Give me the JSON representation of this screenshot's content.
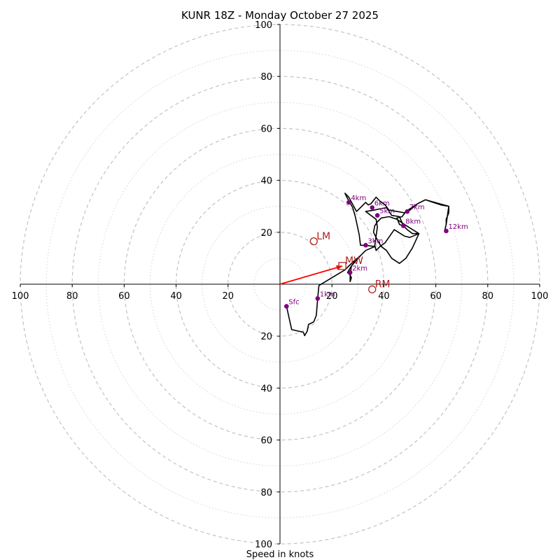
{
  "chart_data": {
    "type": "hodograph",
    "title": "KUNR 18Z - Monday October 27 2025",
    "xlabel": "Speed in knots",
    "range": [
      -100,
      100
    ],
    "rings_major": [
      20,
      40,
      60,
      80,
      100
    ],
    "rings_minor": [
      10,
      30,
      50,
      70,
      90
    ],
    "x_ticks": [
      {
        "value": -100,
        "label": "100"
      },
      {
        "value": -80,
        "label": "80"
      },
      {
        "value": -60,
        "label": "60"
      },
      {
        "value": -40,
        "label": "40"
      },
      {
        "value": -20,
        "label": "20"
      },
      {
        "value": 20,
        "label": "20"
      },
      {
        "value": 40,
        "label": "40"
      },
      {
        "value": 60,
        "label": "60"
      },
      {
        "value": 80,
        "label": "80"
      },
      {
        "value": 100,
        "label": "100"
      }
    ],
    "y_ticks": [
      {
        "value": 100,
        "label": "100"
      },
      {
        "value": 80,
        "label": "80"
      },
      {
        "value": 60,
        "label": "60"
      },
      {
        "value": 40,
        "label": "40"
      },
      {
        "value": 20,
        "label": "20"
      },
      {
        "value": -20,
        "label": "20"
      },
      {
        "value": -40,
        "label": "40"
      },
      {
        "value": -60,
        "label": "60"
      },
      {
        "value": -80,
        "label": "80"
      },
      {
        "value": -100,
        "label": "100"
      }
    ],
    "trace": [
      [
        2.5,
        -8.5
      ],
      [
        4.5,
        -17.5
      ],
      [
        9,
        -18.5
      ],
      [
        9.5,
        -19.8
      ],
      [
        10.5,
        -18
      ],
      [
        11,
        -15.5
      ],
      [
        13,
        -14.5
      ],
      [
        14,
        -12
      ],
      [
        14.5,
        -5.5
      ],
      [
        15,
        -0.5
      ],
      [
        20,
        2.5
      ],
      [
        25,
        5.5
      ],
      [
        28,
        8.5
      ],
      [
        31,
        11
      ],
      [
        33,
        13
      ],
      [
        31,
        11
      ],
      [
        29,
        9
      ],
      [
        27.5,
        7
      ],
      [
        26,
        4.5
      ],
      [
        27,
        3.5
      ],
      [
        27.5,
        2.5
      ],
      [
        27,
        1
      ],
      [
        27,
        3.5
      ],
      [
        27.5,
        7
      ],
      [
        31,
        11
      ],
      [
        33,
        13
      ],
      [
        36.5,
        14.5
      ],
      [
        33,
        15
      ],
      [
        31,
        15
      ],
      [
        30.5,
        19
      ],
      [
        29,
        26
      ],
      [
        28,
        29.5
      ],
      [
        26,
        33
      ],
      [
        25,
        35
      ],
      [
        26.5,
        33.5
      ],
      [
        29.5,
        28
      ],
      [
        31.5,
        30
      ],
      [
        33,
        31.5
      ],
      [
        34,
        30.5
      ],
      [
        35,
        31
      ],
      [
        37,
        33.5
      ],
      [
        38.5,
        32
      ],
      [
        40.5,
        30.5
      ],
      [
        42,
        28.5
      ],
      [
        45,
        28
      ],
      [
        48,
        27.5
      ],
      [
        48.5,
        28
      ],
      [
        50,
        28.5
      ],
      [
        53,
        31
      ],
      [
        56,
        32.5
      ],
      [
        59,
        31.5
      ],
      [
        62,
        30.5
      ],
      [
        65,
        30
      ],
      [
        65,
        27.5
      ],
      [
        64,
        25
      ],
      [
        64,
        23
      ],
      [
        63.5,
        21
      ],
      [
        64,
        23
      ],
      [
        65,
        30
      ],
      [
        56,
        32.5
      ],
      [
        53,
        31
      ],
      [
        48.5,
        28
      ],
      [
        47,
        26
      ],
      [
        45,
        25.5
      ],
      [
        46,
        23
      ],
      [
        47.5,
        22.5
      ],
      [
        49,
        21
      ],
      [
        51,
        19.5
      ],
      [
        53.5,
        19.5
      ],
      [
        49.5,
        22
      ],
      [
        45,
        25
      ],
      [
        42,
        26
      ],
      [
        39,
        25.5
      ],
      [
        37.5,
        24
      ],
      [
        36.5,
        22.5
      ],
      [
        36,
        20
      ],
      [
        37.5,
        17
      ],
      [
        39,
        14.5
      ],
      [
        41,
        13
      ],
      [
        43,
        10
      ],
      [
        46,
        8
      ],
      [
        48.5,
        10
      ],
      [
        51,
        14
      ],
      [
        53.5,
        19.5
      ],
      [
        50,
        18
      ],
      [
        48,
        18.5
      ],
      [
        44,
        21
      ],
      [
        40.5,
        16
      ],
      [
        38.5,
        14.5
      ],
      [
        37,
        13
      ],
      [
        36.5,
        15
      ],
      [
        37.5,
        22
      ],
      [
        37,
        25
      ],
      [
        33,
        28
      ],
      [
        36,
        28.5
      ],
      [
        38.5,
        29
      ],
      [
        41,
        29.5
      ],
      [
        42,
        28
      ],
      [
        43,
        26.5
      ],
      [
        46,
        26
      ],
      [
        47.5,
        22.5
      ]
    ],
    "height_points": [
      {
        "label": "Sfc",
        "u": 2.5,
        "v": -8.5
      },
      {
        "label": "1km",
        "u": 14.5,
        "v": -5.5
      },
      {
        "label": "2km",
        "u": 27,
        "v": 4.5
      },
      {
        "label": "3km",
        "u": 33,
        "v": 15
      },
      {
        "label": "4km",
        "u": 26.5,
        "v": 31.5
      },
      {
        "label": "5km",
        "u": 37.5,
        "v": 26.5
      },
      {
        "label": "6km",
        "u": 35.5,
        "v": 29.5
      },
      {
        "label": "7km",
        "u": 49,
        "v": 28
      },
      {
        "label": "8km",
        "u": 47.5,
        "v": 22.5
      },
      {
        "label": "12km",
        "u": 64,
        "v": 20.5
      }
    ],
    "markers": [
      {
        "label": "LM",
        "u": 13,
        "v": 16.5,
        "shape": "circle"
      },
      {
        "label": "MW",
        "u": 24,
        "v": 7,
        "shape": "square"
      },
      {
        "label": "RM",
        "u": 35.5,
        "v": -2,
        "shape": "circle"
      }
    ],
    "mean_wind_vector": {
      "u": 24,
      "v": 7
    },
    "colors": {
      "trace": "#000000",
      "height_points": "#800080",
      "markers": "#b22222",
      "mean_wind_arrow": "#ff0000",
      "rings": "#bdbdbd"
    }
  }
}
